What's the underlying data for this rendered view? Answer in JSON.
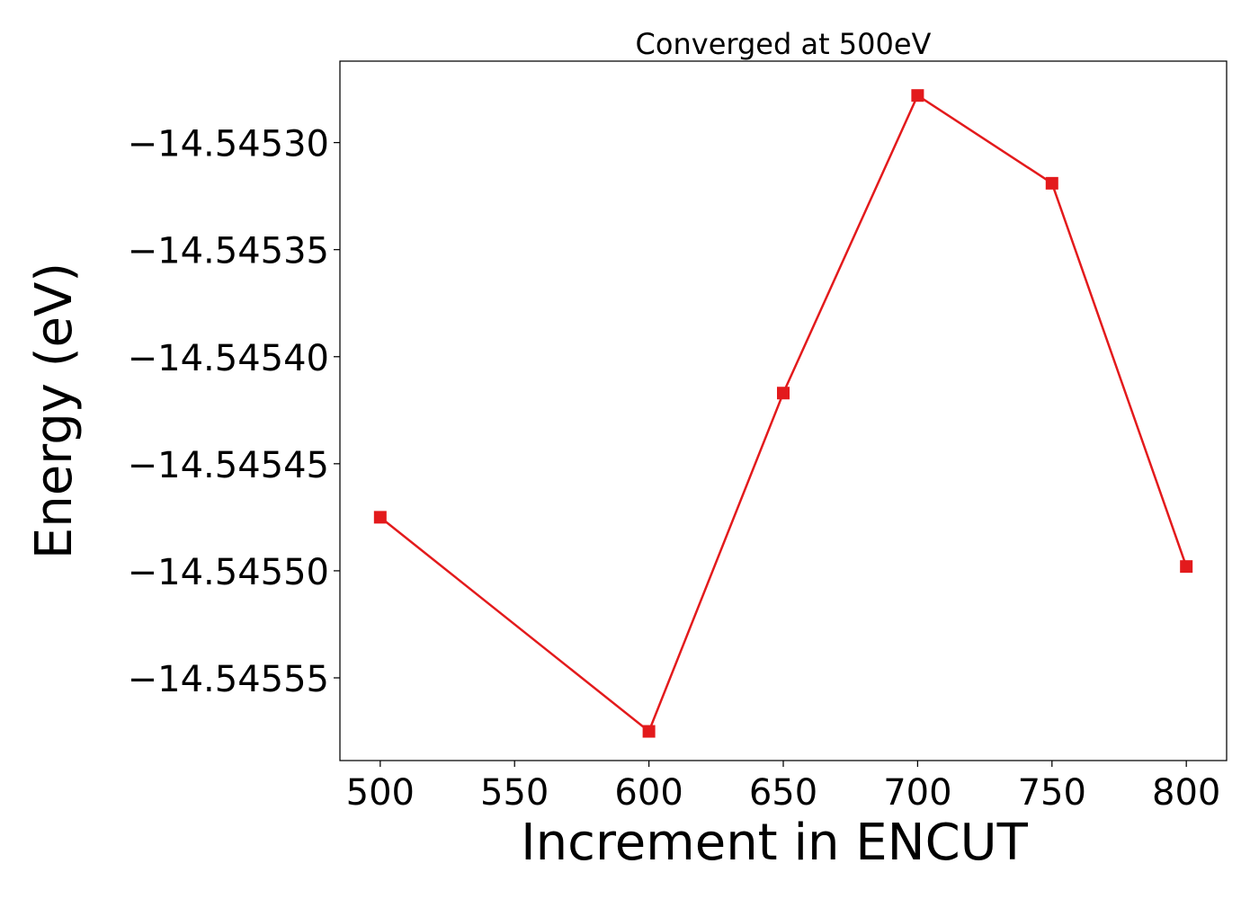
{
  "chart_data": {
    "type": "line",
    "title": "Converged at 500eV",
    "xlabel": "Increment in ENCUT",
    "ylabel": "Energy (eV)",
    "x": [
      500,
      600,
      650,
      700,
      750,
      800
    ],
    "series": [
      {
        "values": [
          -14.545475,
          -14.545575,
          -14.545417,
          -14.545278,
          -14.545319,
          -14.545498
        ],
        "color": "#e31a1c",
        "marker": "square"
      }
    ],
    "xticks": [
      500,
      550,
      600,
      650,
      700,
      750,
      800
    ],
    "xtick_labels": [
      "500",
      "550",
      "600",
      "650",
      "700",
      "750",
      "800"
    ],
    "yticks": [
      -14.5453,
      -14.54535,
      -14.5454,
      -14.54545,
      -14.5455,
      -14.54555
    ],
    "ytick_labels": [
      "−14.54530",
      "−14.54535",
      "−14.54540",
      "−14.54545",
      "−14.54550",
      "−14.54555"
    ],
    "xlim": [
      485,
      815
    ],
    "ylim": [
      -14.54558863,
      -14.54526196
    ],
    "grid": false,
    "legend": "none"
  }
}
